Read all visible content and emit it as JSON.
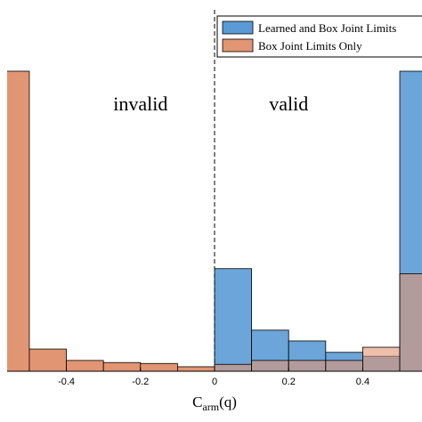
{
  "chart_data": {
    "type": "bar",
    "bin_width": 0.1,
    "xlim": [
      -0.56,
      0.56
    ],
    "ylim": [
      0,
      1.0
    ],
    "grid": false,
    "legend_placement": "top-right",
    "x_ticks": [
      -0.4,
      -0.2,
      0,
      0.2,
      0.4
    ],
    "x_tick_labels": [
      "-0.4",
      "-0.2",
      "0",
      "0.2",
      "0.4"
    ],
    "xlabel": {
      "main": "C",
      "subscript": "arm",
      "suffix": "(q)"
    },
    "threshold_x": 0,
    "annotations": [
      {
        "text": "invalid",
        "x": -0.2,
        "y": 0.87
      },
      {
        "text": "valid",
        "x": 0.2,
        "y": 0.87
      }
    ],
    "series": [
      {
        "name": "Learned and Box Joint Limits",
        "color": "#5B9BD5",
        "bins": [
          {
            "x0": 0.0,
            "x1": 0.1,
            "value": 0.342
          },
          {
            "x0": 0.1,
            "x1": 0.2,
            "value": 0.137
          },
          {
            "x0": 0.2,
            "x1": 0.3,
            "value": 0.101
          },
          {
            "x0": 0.3,
            "x1": 0.4,
            "value": 0.063
          },
          {
            "x0": 0.4,
            "x1": 0.5,
            "value": 0.05
          },
          {
            "x0": 0.5,
            "x1": 0.6,
            "value": 1.0
          }
        ]
      },
      {
        "name": "Box Joint Limits Only",
        "color": "#E29573",
        "bins": [
          {
            "x0": -0.6,
            "x1": -0.5,
            "value": 1.0
          },
          {
            "x0": -0.5,
            "x1": -0.4,
            "value": 0.074
          },
          {
            "x0": -0.4,
            "x1": -0.3,
            "value": 0.036
          },
          {
            "x0": -0.3,
            "x1": -0.2,
            "value": 0.029
          },
          {
            "x0": -0.2,
            "x1": -0.1,
            "value": 0.026
          },
          {
            "x0": -0.1,
            "x1": 0.0,
            "value": 0.015
          },
          {
            "x0": 0.0,
            "x1": 0.1,
            "value": 0.023
          },
          {
            "x0": 0.1,
            "x1": 0.2,
            "value": 0.036
          },
          {
            "x0": 0.2,
            "x1": 0.3,
            "value": 0.036
          },
          {
            "x0": 0.3,
            "x1": 0.4,
            "value": 0.036
          },
          {
            "x0": 0.4,
            "x1": 0.5,
            "value": 0.08
          },
          {
            "x0": 0.5,
            "x1": 0.6,
            "value": 0.325
          }
        ]
      }
    ]
  }
}
